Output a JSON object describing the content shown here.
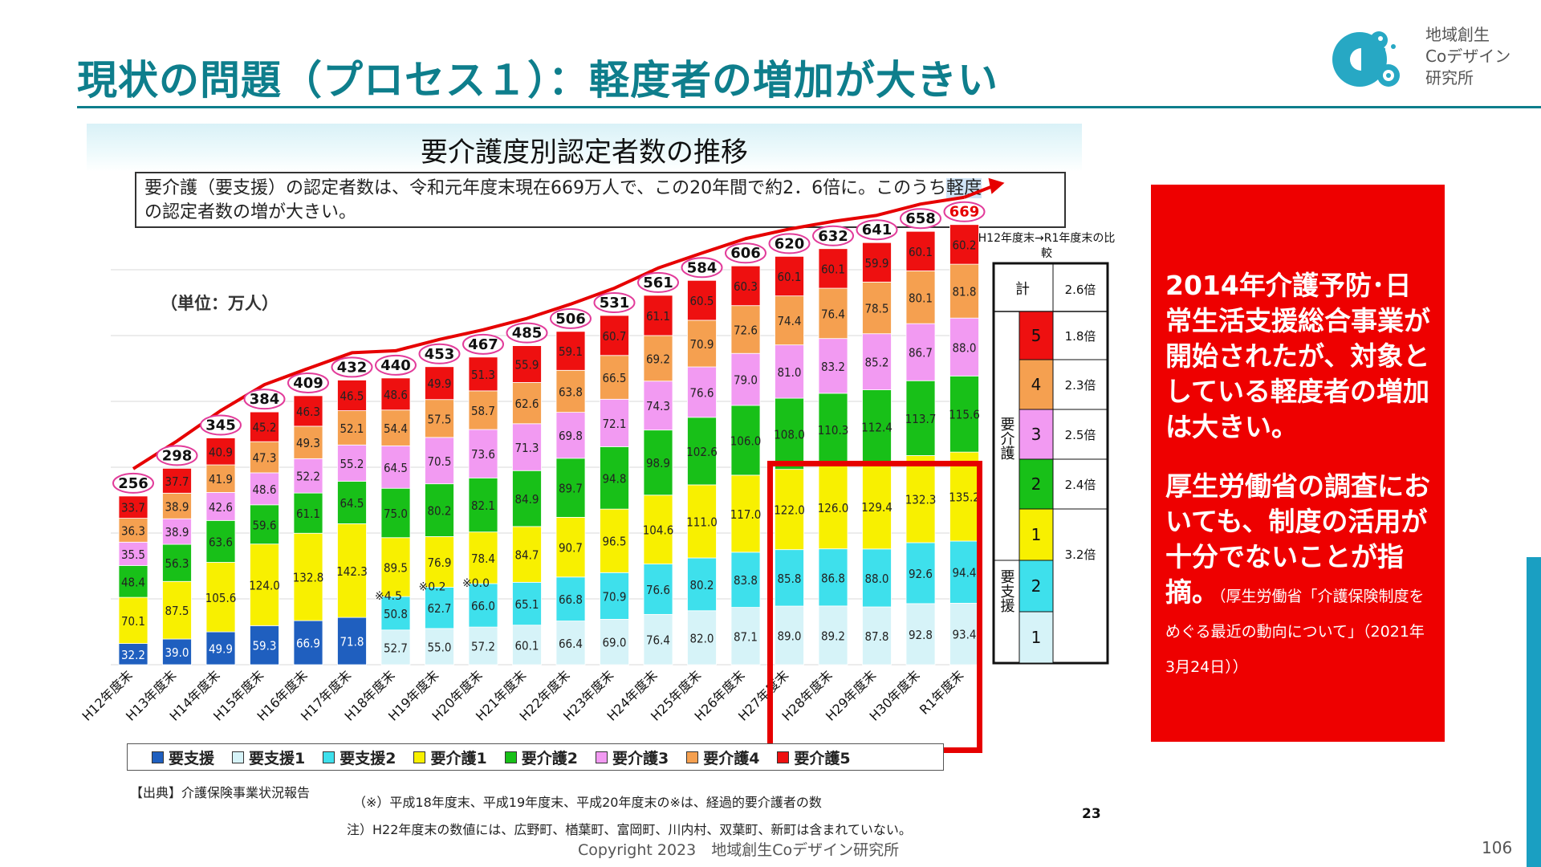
{
  "slide": {
    "title": "現状の問題（プロセス１）：軽度者の増加が大きい",
    "logo_text_lines": [
      "地域創生",
      "Coデザイン",
      "研究所"
    ],
    "copyright": "Copyright 2023　地域創生Coデザイン研究所",
    "page_number": "106"
  },
  "chart_header": {
    "title": "要介護度別認定者数の推移",
    "lead_text_before": "要介護（要支援）の認定者数は、令和元年度末現在669万人で、この20年間で約2．6倍に。このうち",
    "lead_text_highlight": "軽度",
    "lead_text_after": "の認定者数の増が大きい。",
    "unit": "（単位：万人）"
  },
  "comparison": {
    "header": "H12年度末→R1年度末の比較",
    "total_label": "計",
    "total_ratio": "2.6倍",
    "group_kaigo": "要介護",
    "group_shien": "要支援",
    "rows": [
      {
        "level": "5",
        "ratio": "1.8倍"
      },
      {
        "level": "4",
        "ratio": "2.3倍"
      },
      {
        "level": "3",
        "ratio": "2.5倍"
      },
      {
        "level": "2",
        "ratio": "2.4倍"
      },
      {
        "level": "1",
        "ratio": ""
      },
      {
        "level": "2",
        "ratio": "3.2倍"
      },
      {
        "level": "1",
        "ratio": ""
      }
    ]
  },
  "footnotes": {
    "source": "【出典】介護保険事業状況報告",
    "note1": "（※）平成18年度末、平成19年度末、平成20年度末の※は、経過的要介護者の数",
    "note2": "注）H22年度末の数値には、広野町、楢葉町、富岡町、川内村、双葉町、新町は含まれていない。",
    "inner_page": "23"
  },
  "callout": {
    "paragraph1": "2014年介護予防･日常生活支援総合事業が開始されたが、対象としている軽度者の増加は大きい。",
    "paragraph2": "厚生労働省の調査においても、制度の活用が十分でないことが指摘。",
    "source": "（厚生労働省「介護保険制度をめぐる最近の動向について」（2021年3月24日））"
  },
  "chart_data": {
    "type": "bar",
    "stacked": true,
    "title": "要介護度別認定者数の推移",
    "ylabel": "（単位：万人）",
    "ylim": [
      0,
      690
    ],
    "categories": [
      "H12年度末",
      "H13年度末",
      "H14年度末",
      "H15年度末",
      "H16年度末",
      "H17年度末",
      "H18年度末",
      "H19年度末",
      "H20年度末",
      "H21年度末",
      "H22年度末",
      "H23年度末",
      "H24年度末",
      "H25年度末",
      "H26年度末",
      "H27年度末",
      "H28年度末",
      "H29年度末",
      "H30年度末",
      "R1年度末"
    ],
    "totals": [
      256,
      298,
      345,
      384,
      409,
      432,
      440,
      453,
      467,
      485,
      506,
      531,
      561,
      584,
      606,
      620,
      632,
      641,
      658,
      669
    ],
    "special_values": [
      "",
      "",
      "",
      "",
      "",
      "",
      "※4.5",
      "※0.2",
      "※0.0",
      "",
      "",
      "",
      "",
      "",
      "",
      "",
      "",
      "",
      "",
      ""
    ],
    "series": [
      {
        "name": "要支援",
        "color": "#1f5fbf",
        "values": [
          32.2,
          39.0,
          49.9,
          59.3,
          66.9,
          71.8,
          null,
          null,
          null,
          null,
          null,
          null,
          null,
          null,
          null,
          null,
          null,
          null,
          null,
          null
        ]
      },
      {
        "name": "要支援1",
        "color": "#d6f3f8",
        "values": [
          null,
          null,
          null,
          null,
          null,
          null,
          52.7,
          55.0,
          57.2,
          60.1,
          66.4,
          69.0,
          76.4,
          82.0,
          87.1,
          89.0,
          89.2,
          87.8,
          92.8,
          93.4
        ]
      },
      {
        "name": "要支援2",
        "color": "#3ee0ec",
        "values": [
          null,
          null,
          null,
          null,
          null,
          null,
          50.8,
          62.7,
          66.0,
          65.1,
          66.8,
          70.9,
          76.6,
          80.2,
          83.8,
          85.8,
          86.8,
          88.0,
          92.6,
          94.4
        ]
      },
      {
        "name": "要介護1",
        "color": "#f8f000",
        "values": [
          70.1,
          87.5,
          105.6,
          124.0,
          132.8,
          142.3,
          89.5,
          76.9,
          78.4,
          84.7,
          90.7,
          96.5,
          104.6,
          111.0,
          117.0,
          122.0,
          126.0,
          129.4,
          132.3,
          135.2
        ]
      },
      {
        "name": "要介護2",
        "color": "#18c018",
        "values": [
          48.4,
          56.3,
          63.6,
          59.6,
          61.1,
          64.5,
          75.0,
          80.2,
          82.1,
          84.9,
          89.7,
          94.8,
          98.9,
          102.6,
          106.0,
          108.0,
          110.3,
          112.4,
          113.7,
          115.6
        ]
      },
      {
        "name": "要介護3",
        "color": "#f29af2",
        "values": [
          35.5,
          38.9,
          42.6,
          48.6,
          52.2,
          55.2,
          64.5,
          70.5,
          73.6,
          71.3,
          69.8,
          72.1,
          74.3,
          76.6,
          79.0,
          81.0,
          83.2,
          85.2,
          86.7,
          88.0
        ]
      },
      {
        "name": "要介護4",
        "color": "#f5a050",
        "values": [
          36.3,
          38.9,
          41.9,
          47.3,
          49.3,
          52.1,
          54.4,
          57.5,
          58.7,
          62.6,
          63.8,
          66.5,
          69.2,
          70.9,
          72.6,
          74.4,
          76.4,
          78.5,
          80.1,
          81.8
        ]
      },
      {
        "name": "要介護5",
        "color": "#ee1010",
        "values": [
          33.7,
          37.7,
          40.9,
          45.2,
          46.3,
          46.5,
          48.6,
          49.9,
          51.3,
          55.9,
          59.1,
          60.7,
          61.1,
          60.5,
          60.3,
          60.1,
          60.1,
          59.9,
          60.1,
          60.2
        ]
      }
    ]
  }
}
